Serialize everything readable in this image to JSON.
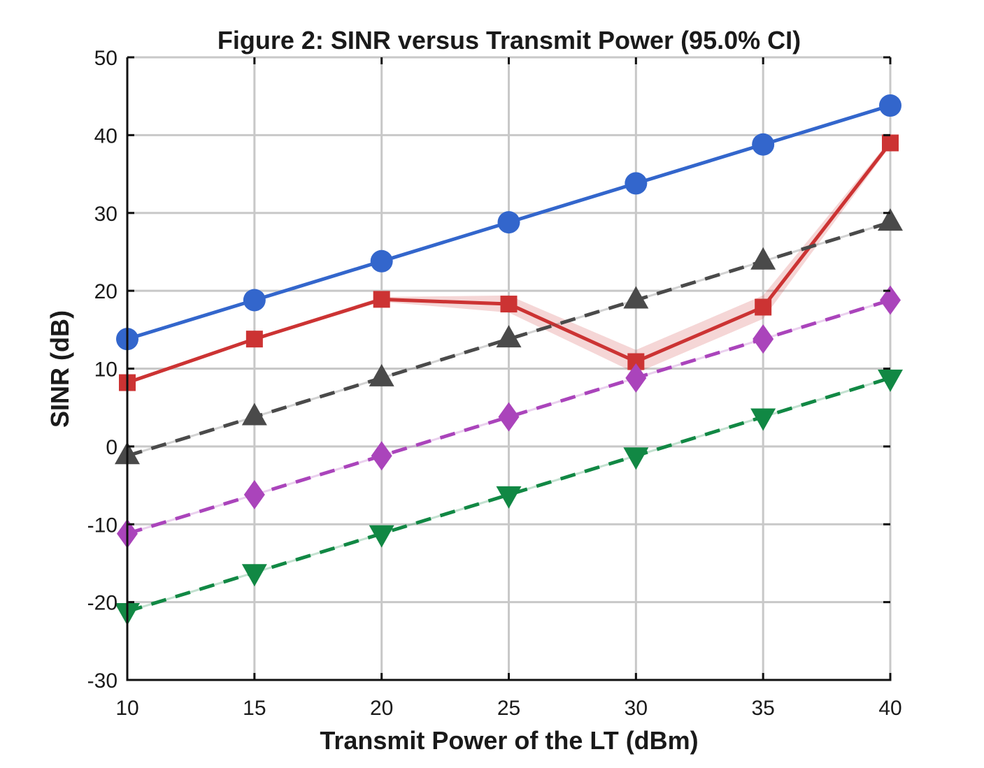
{
  "chart_data": {
    "type": "line",
    "title": "Figure 2: SINR versus Transmit Power (95.0% CI)",
    "xlabel": "Transmit Power of the LT (dBm)",
    "ylabel": "SINR (dB)",
    "xlim": [
      10,
      40
    ],
    "ylim": [
      -30,
      50
    ],
    "xticks": [
      "10",
      "15",
      "20",
      "25",
      "30",
      "35",
      "40"
    ],
    "yticks": [
      "-30",
      "-20",
      "-10",
      "0",
      "10",
      "20",
      "30",
      "40",
      "50"
    ],
    "grid": true,
    "x": [
      10,
      15,
      20,
      25,
      30,
      35,
      40
    ],
    "series": [
      {
        "color": "#3366cc",
        "dash": false,
        "marker": "circle",
        "values": [
          13.8,
          18.8,
          23.8,
          28.8,
          33.8,
          38.8,
          43.8
        ]
      },
      {
        "color": "#cc3333",
        "dash": false,
        "marker": "square",
        "values": [
          8.2,
          13.8,
          18.9,
          18.3,
          10.9,
          17.9,
          39.0
        ],
        "ci_lower": [
          8.0,
          13.6,
          18.6,
          17.2,
          9.4,
          16.4,
          38.6
        ],
        "ci_upper": [
          8.4,
          14.0,
          19.2,
          19.4,
          12.4,
          19.4,
          39.4
        ]
      },
      {
        "color": "#4a4a4a",
        "dash": true,
        "marker": "triangle-up",
        "values": [
          -1.2,
          3.8,
          8.8,
          13.8,
          18.8,
          23.8,
          28.8
        ]
      },
      {
        "color": "#aa44bb",
        "dash": true,
        "marker": "diamond",
        "values": [
          -11.2,
          -6.2,
          -1.2,
          3.8,
          8.8,
          13.8,
          18.8
        ]
      },
      {
        "color": "#118844",
        "dash": true,
        "marker": "triangle-down",
        "values": [
          -21.2,
          -16.2,
          -11.2,
          -6.2,
          -1.2,
          3.8,
          8.8
        ]
      }
    ]
  }
}
